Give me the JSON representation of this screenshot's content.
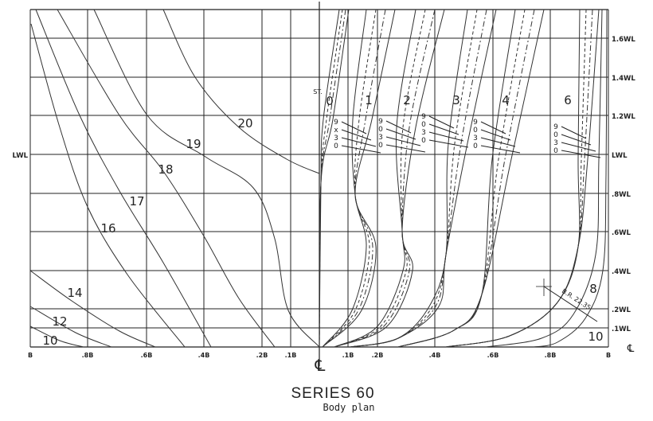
{
  "waterlines": [
    "1.6WL",
    "1.4WL",
    "1.2WL",
    "LWL",
    ".8WL",
    ".6WL",
    ".4WL",
    ".2WL",
    ".1WL"
  ],
  "left_lwl_label": "LWL",
  "beam_labels": [
    "B",
    ".8B",
    ".6B",
    ".4B",
    ".2B",
    ".1B",
    ".1B",
    ".2B",
    ".4B",
    ".6B",
    ".8B",
    "B"
  ],
  "centerline_symbol": "℄",
  "afterbody_stations": [
    "20",
    "19",
    "18",
    "17",
    "16",
    "14",
    "12",
    "10"
  ],
  "forebody_stations": {
    "prefix": "ST.",
    "labels": [
      "0",
      "1",
      "2",
      "3",
      "4",
      "6",
      "8",
      "10"
    ]
  },
  "key_marks": [
    [
      "9",
      "x",
      "3",
      "0"
    ],
    [
      "9",
      "0",
      "3",
      "0"
    ],
    [
      "9",
      "0",
      "3",
      "0"
    ],
    [
      "9",
      "0",
      "3",
      "0"
    ],
    [
      "9",
      "0",
      "3",
      "0"
    ]
  ],
  "bilge_radius_label": "B.R. 22.35'",
  "title": "SERIES 60",
  "subtitle": "Body plan",
  "colors": {
    "line": "#333333",
    "grid": "#222222"
  }
}
